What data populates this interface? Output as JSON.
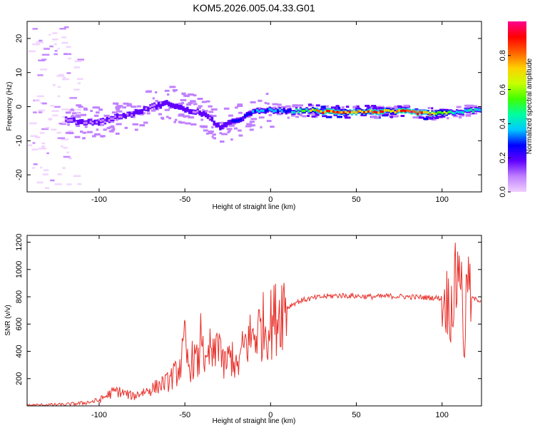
{
  "title": "KOM5.2026.005.04.33.G01",
  "chart_data": [
    {
      "type": "heatmap",
      "xlabel": "Height of straight line (km)",
      "ylabel": "Frequency (Hz)",
      "xlim": [
        -142,
        123
      ],
      "ylim": [
        -25,
        25
      ],
      "x_ticks": [
        -100,
        -50,
        0,
        50,
        100
      ],
      "y_ticks": [
        -20,
        -10,
        0,
        10,
        20
      ],
      "colorbar": {
        "label": "Normalized spectral amplitude",
        "range": [
          0,
          1
        ],
        "ticks": [
          0.0,
          0.2,
          0.4,
          0.6,
          0.8
        ],
        "tick_labels": [
          "0.0",
          "0.2",
          "0.4",
          "0.6",
          "0.8"
        ],
        "colormap": [
          "#f0d0ff",
          "#c080ff",
          "#6000ff",
          "#0000ff",
          "#00c8ff",
          "#00ffa0",
          "#40ff00",
          "#c8ff00",
          "#ffd000",
          "#ff6000",
          "#ff0000",
          "#ff0090"
        ]
      },
      "ridge": [
        {
          "x": -120,
          "f": -4,
          "amp": 0.1
        },
        {
          "x": -110,
          "f": -4.5,
          "amp": 0.15
        },
        {
          "x": -100,
          "f": -4.5,
          "amp": 0.12
        },
        {
          "x": -90,
          "f": -3,
          "amp": 0.12
        },
        {
          "x": -80,
          "f": -2,
          "amp": 0.15
        },
        {
          "x": -70,
          "f": 0,
          "amp": 0.14
        },
        {
          "x": -60,
          "f": 1,
          "amp": 0.16
        },
        {
          "x": -50,
          "f": -1,
          "amp": 0.18
        },
        {
          "x": -40,
          "f": -2,
          "amp": 0.15
        },
        {
          "x": -30,
          "f": -6,
          "amp": 0.18
        },
        {
          "x": -20,
          "f": -4,
          "amp": 0.25
        },
        {
          "x": -10,
          "f": -1.5,
          "amp": 0.3
        },
        {
          "x": 0,
          "f": -1,
          "amp": 0.35
        },
        {
          "x": 10,
          "f": -1.5,
          "amp": 0.35
        },
        {
          "x": 20,
          "f": -1,
          "amp": 0.5
        },
        {
          "x": 30,
          "f": -1.5,
          "amp": 0.85
        },
        {
          "x": 40,
          "f": -1.5,
          "amp": 0.75
        },
        {
          "x": 50,
          "f": -1.5,
          "amp": 0.7
        },
        {
          "x": 60,
          "f": -1.5,
          "amp": 0.8
        },
        {
          "x": 70,
          "f": -1.5,
          "amp": 0.75
        },
        {
          "x": 80,
          "f": -1.5,
          "amp": 0.85
        },
        {
          "x": 90,
          "f": -2,
          "amp": 0.8
        },
        {
          "x": 100,
          "f": -2,
          "amp": 0.6
        },
        {
          "x": 110,
          "f": -1.5,
          "amp": 0.4
        },
        {
          "x": 120,
          "f": -1,
          "amp": 0.4
        }
      ]
    },
    {
      "type": "line",
      "xlabel": "Height of straight line (km)",
      "ylabel": "SNR (v/v)",
      "xlim": [
        -142,
        123
      ],
      "ylim": [
        0,
        1250
      ],
      "x_ticks": [
        -100,
        -50,
        0,
        50,
        100
      ],
      "y_ticks": [
        200,
        400,
        600,
        800,
        1000,
        1200
      ],
      "color": "#e8302a",
      "series": [
        {
          "x": [
            -142,
            -130,
            -120,
            -110,
            -100,
            -95,
            -90,
            -85,
            -80,
            -75,
            -70,
            -65,
            -60,
            -55,
            -52,
            -50,
            -48,
            -45,
            -42,
            -40,
            -38,
            -35,
            -33,
            -30,
            -28,
            -25,
            -22,
            -20,
            -15,
            -10,
            -5,
            0,
            3,
            5,
            8,
            10,
            12,
            15,
            20,
            25,
            30,
            40,
            50,
            60,
            70,
            80,
            90,
            100,
            103,
            105,
            107,
            109,
            110,
            111,
            112,
            113,
            114,
            115,
            116,
            118,
            120,
            123
          ],
          "y": [
            5,
            8,
            10,
            20,
            40,
            80,
            110,
            90,
            70,
            100,
            120,
            150,
            180,
            240,
            320,
            460,
            280,
            350,
            300,
            620,
            250,
            420,
            320,
            560,
            280,
            330,
            380,
            260,
            450,
            520,
            580,
            600,
            650,
            700,
            760,
            720,
            740,
            760,
            780,
            790,
            800,
            810,
            805,
            800,
            805,
            800,
            795,
            790,
            770,
            700,
            850,
            950,
            1180,
            1000,
            600,
            430,
            700,
            1100,
            780,
            790,
            780,
            770
          ]
        }
      ]
    }
  ]
}
